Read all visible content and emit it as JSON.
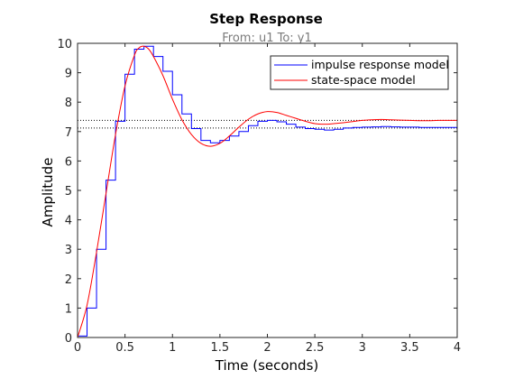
{
  "chart_data": {
    "type": "line",
    "title": "Step Response",
    "subtitle": "From: u1  To: y1",
    "xlabel": "Time (seconds)",
    "ylabel": "Amplitude",
    "xlim": [
      0,
      4
    ],
    "ylim": [
      0,
      10
    ],
    "xticks": [
      0,
      0.5,
      1,
      1.5,
      2,
      2.5,
      3,
      3.5,
      4
    ],
    "xtick_labels": [
      "0",
      "0.5",
      "1",
      "1.5",
      "2",
      "2.5",
      "3",
      "3.5",
      "4"
    ],
    "yticks": [
      0,
      1,
      2,
      3,
      4,
      5,
      6,
      7,
      8,
      9,
      10
    ],
    "ytick_labels": [
      "0",
      "1",
      "2",
      "3",
      "4",
      "5",
      "6",
      "7",
      "8",
      "9",
      "10"
    ],
    "grid": false,
    "legend_position": "top-right",
    "reference_lines": [
      {
        "y": 7.12,
        "style": "dotted",
        "color": "#000000"
      },
      {
        "y": 7.38,
        "style": "dotted",
        "color": "#000000"
      }
    ],
    "series": [
      {
        "name": "impulse response model",
        "color": "#0000ff",
        "style": "stairs",
        "step": 0.1,
        "values": [
          0.05,
          1.0,
          3.0,
          5.35,
          7.35,
          8.95,
          9.8,
          9.9,
          9.55,
          9.05,
          8.25,
          7.6,
          7.1,
          6.7,
          6.62,
          6.7,
          6.85,
          7.0,
          7.2,
          7.35,
          7.38,
          7.33,
          7.25,
          7.15,
          7.1,
          7.08,
          7.05,
          7.08,
          7.12,
          7.14,
          7.15,
          7.16,
          7.17,
          7.16,
          7.15,
          7.15,
          7.14,
          7.14,
          7.14,
          7.14
        ]
      },
      {
        "name": "state-space model",
        "color": "#ff0000",
        "style": "line",
        "points": [
          [
            0,
            0
          ],
          [
            0.1,
            1.1
          ],
          [
            0.2,
            2.9
          ],
          [
            0.3,
            4.9
          ],
          [
            0.4,
            6.9
          ],
          [
            0.5,
            8.55
          ],
          [
            0.6,
            9.6
          ],
          [
            0.65,
            9.85
          ],
          [
            0.7,
            9.9
          ],
          [
            0.75,
            9.8
          ],
          [
            0.8,
            9.55
          ],
          [
            0.9,
            8.9
          ],
          [
            1.0,
            8.1
          ],
          [
            1.1,
            7.4
          ],
          [
            1.2,
            6.9
          ],
          [
            1.3,
            6.6
          ],
          [
            1.4,
            6.5
          ],
          [
            1.5,
            6.6
          ],
          [
            1.6,
            6.85
          ],
          [
            1.7,
            7.15
          ],
          [
            1.8,
            7.42
          ],
          [
            1.9,
            7.6
          ],
          [
            2.0,
            7.68
          ],
          [
            2.1,
            7.65
          ],
          [
            2.2,
            7.55
          ],
          [
            2.3,
            7.45
          ],
          [
            2.4,
            7.35
          ],
          [
            2.5,
            7.27
          ],
          [
            2.6,
            7.25
          ],
          [
            2.7,
            7.27
          ],
          [
            2.8,
            7.3
          ],
          [
            2.9,
            7.34
          ],
          [
            3.0,
            7.38
          ],
          [
            3.1,
            7.4
          ],
          [
            3.2,
            7.41
          ],
          [
            3.3,
            7.4
          ],
          [
            3.4,
            7.39
          ],
          [
            3.5,
            7.38
          ],
          [
            3.6,
            7.37
          ],
          [
            3.7,
            7.37
          ],
          [
            3.8,
            7.38
          ],
          [
            3.9,
            7.38
          ],
          [
            4.0,
            7.38
          ]
        ]
      }
    ]
  }
}
